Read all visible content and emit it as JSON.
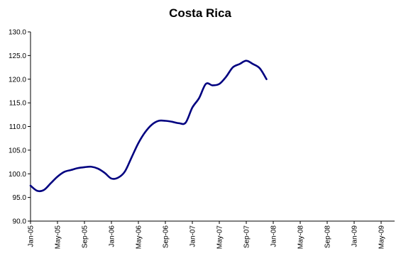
{
  "chart_data": {
    "type": "line",
    "title": "Costa Rica",
    "xlabel": "",
    "ylabel": "",
    "grid": false,
    "legend": "none",
    "ylim": [
      90.0,
      130.0
    ],
    "xlim": [
      "2005-01",
      "2009-07"
    ],
    "y_ticks": [
      "90.0",
      "95.0",
      "100.0",
      "105.0",
      "110.0",
      "115.0",
      "120.0",
      "125.0",
      "130.0"
    ],
    "x_ticks": [
      {
        "date": "2005-01",
        "label": "Jan-05"
      },
      {
        "date": "2005-05",
        "label": "May-05"
      },
      {
        "date": "2005-09",
        "label": "Sep-05"
      },
      {
        "date": "2006-01",
        "label": "Jan-06"
      },
      {
        "date": "2006-05",
        "label": "May-06"
      },
      {
        "date": "2006-09",
        "label": "Sep-06"
      },
      {
        "date": "2007-01",
        "label": "Jan-07"
      },
      {
        "date": "2007-05",
        "label": "May-07"
      },
      {
        "date": "2007-09",
        "label": "Sep-07"
      },
      {
        "date": "2008-01",
        "label": "Jan-08"
      },
      {
        "date": "2008-05",
        "label": "May-08"
      },
      {
        "date": "2008-09",
        "label": "Sep-08"
      },
      {
        "date": "2009-01",
        "label": "Jan-09"
      },
      {
        "date": "2009-05",
        "label": "May-09"
      }
    ],
    "series_color": "#000080",
    "series": [
      {
        "x": [
          "2005-01",
          "2005-02",
          "2005-03",
          "2005-04",
          "2005-05",
          "2005-06",
          "2005-07",
          "2005-08",
          "2005-09",
          "2005-10",
          "2005-11",
          "2005-12",
          "2006-01",
          "2006-02",
          "2006-03",
          "2006-04",
          "2006-05",
          "2006-06",
          "2006-07",
          "2006-08",
          "2006-09",
          "2006-10",
          "2006-11",
          "2006-12",
          "2007-01",
          "2007-02",
          "2007-03",
          "2007-04",
          "2007-05",
          "2007-06",
          "2007-07",
          "2007-08",
          "2007-09",
          "2007-10",
          "2007-11",
          "2007-12"
        ],
        "values": [
          97.5,
          96.4,
          96.6,
          98.0,
          99.4,
          100.4,
          100.8,
          101.2,
          101.4,
          101.5,
          101.1,
          100.2,
          99.0,
          99.2,
          100.5,
          103.5,
          106.5,
          108.8,
          110.4,
          111.2,
          111.2,
          111.0,
          110.7,
          110.8,
          114.0,
          116.0,
          119.0,
          118.7,
          119.0,
          120.5,
          122.5,
          123.2,
          123.9,
          123.2,
          122.3,
          120.0
        ]
      }
    ]
  }
}
